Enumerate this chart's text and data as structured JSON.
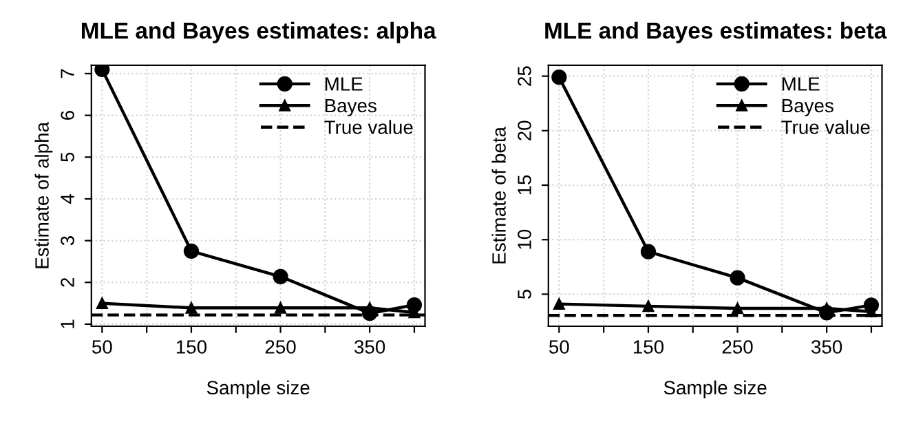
{
  "chart_data": [
    {
      "type": "line",
      "title": "MLE and Bayes estimates: alpha",
      "xlabel": "Sample size",
      "ylabel": "Estimate of alpha",
      "x": [
        50,
        150,
        250,
        350,
        400
      ],
      "series": [
        {
          "name": "MLE",
          "color": "#000000",
          "marker": "circle",
          "values": [
            7.1,
            2.75,
            2.14,
            1.26,
            1.46
          ]
        },
        {
          "name": "Bayes",
          "color": "#000000",
          "marker": "triangle",
          "values": [
            1.5,
            1.39,
            1.39,
            1.39,
            1.28
          ]
        }
      ],
      "ref_lines": [
        {
          "axis": "y",
          "value": 1.22,
          "label": "True value",
          "color": "#000000",
          "line_style": "dashed"
        }
      ],
      "xlim": [
        38,
        412
      ],
      "xticks": [
        50,
        {
          "value": 100,
          "label": null
        },
        150,
        {
          "value": 200,
          "label": null
        },
        250,
        {
          "value": 300,
          "label": null
        },
        350,
        {
          "value": 400,
          "label": null
        }
      ],
      "ylim": [
        0.95,
        7.2
      ],
      "yticks": [
        1,
        2,
        3,
        4,
        5,
        6,
        7
      ],
      "grid": true,
      "legend": "top right",
      "line_style": "solid"
    },
    {
      "type": "line",
      "title": "MLE and Bayes estimates: beta",
      "xlabel": "Sample size",
      "ylabel": "Estimate of beta",
      "x": [
        50,
        150,
        250,
        350,
        400
      ],
      "series": [
        {
          "name": "MLE",
          "color": "#000000",
          "marker": "circle",
          "values": [
            24.9,
            8.9,
            6.5,
            3.3,
            4.0
          ]
        },
        {
          "name": "Bayes",
          "color": "#000000",
          "marker": "triangle",
          "values": [
            4.1,
            3.9,
            3.7,
            3.7,
            3.4
          ]
        }
      ],
      "ref_lines": [
        {
          "axis": "y",
          "value": 3.05,
          "label": "True value",
          "color": "#000000",
          "line_style": "dashed"
        }
      ],
      "xlim": [
        38,
        412
      ],
      "xticks": [
        50,
        {
          "value": 100,
          "label": null
        },
        150,
        {
          "value": 200,
          "label": null
        },
        250,
        {
          "value": 300,
          "label": null
        },
        350,
        {
          "value": 400,
          "label": null
        }
      ],
      "ylim": [
        2.06,
        26.0
      ],
      "yticks": [
        5,
        10,
        15,
        20,
        25
      ],
      "grid": true,
      "legend": "top right",
      "line_style": "solid"
    }
  ]
}
